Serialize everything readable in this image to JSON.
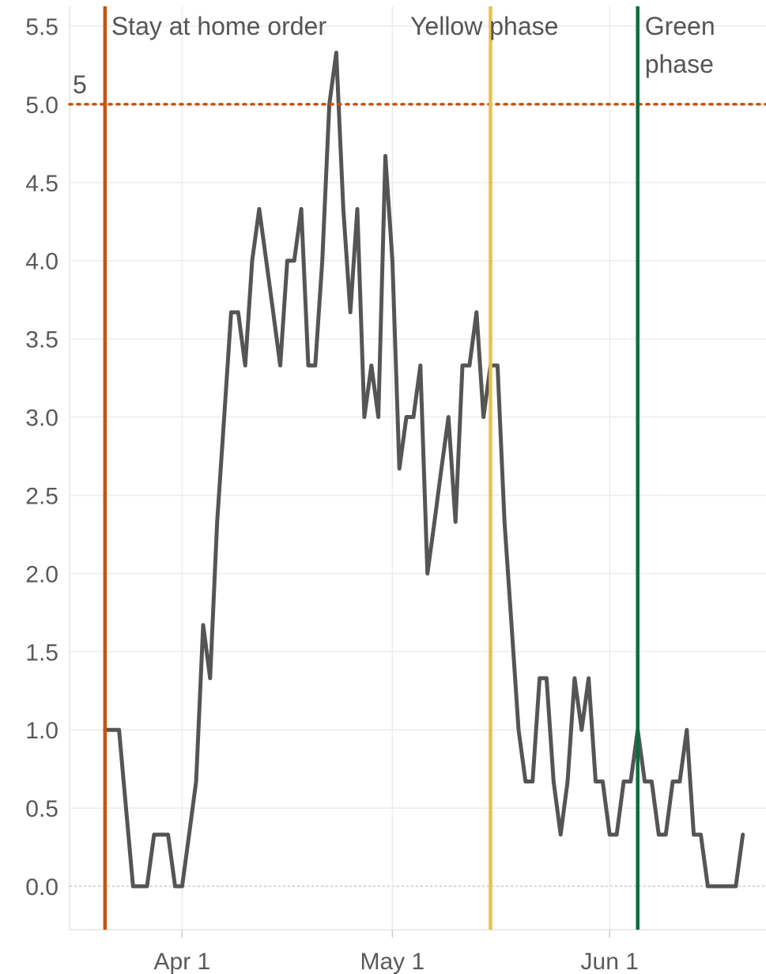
{
  "chart_data": {
    "type": "line",
    "title": "",
    "xlabel": "",
    "ylabel": "",
    "ylim": [
      -0.28,
      5.6
    ],
    "xlim": [
      "2020-03-16",
      "2020-06-21"
    ],
    "grid": true,
    "y_ticks": [
      "0.0",
      "0.5",
      "1.0",
      "1.5",
      "2.0",
      "2.5",
      "3.0",
      "3.5",
      "4.0",
      "4.5",
      "5.0",
      "5.5"
    ],
    "x_ticks": [
      {
        "date": "2020-04-01",
        "label": "Apr 1"
      },
      {
        "date": "2020-05-01",
        "label": "May 1"
      },
      {
        "date": "2020-06-01",
        "label": "Jun 1"
      }
    ],
    "series": [
      {
        "color": "#555555",
        "points": [
          [
            "2020-03-21",
            1.0
          ],
          [
            "2020-03-22",
            1.0
          ],
          [
            "2020-03-23",
            1.0
          ],
          [
            "2020-03-24",
            0.5
          ],
          [
            "2020-03-25",
            0.0
          ],
          [
            "2020-03-26",
            0.0
          ],
          [
            "2020-03-27",
            0.0
          ],
          [
            "2020-03-28",
            0.33
          ],
          [
            "2020-03-29",
            0.33
          ],
          [
            "2020-03-30",
            0.33
          ],
          [
            "2020-03-31",
            0.0
          ],
          [
            "2020-04-01",
            0.0
          ],
          [
            "2020-04-02",
            0.33
          ],
          [
            "2020-04-03",
            0.67
          ],
          [
            "2020-04-04",
            1.67
          ],
          [
            "2020-04-05",
            1.33
          ],
          [
            "2020-04-06",
            2.33
          ],
          [
            "2020-04-07",
            3.0
          ],
          [
            "2020-04-08",
            3.67
          ],
          [
            "2020-04-09",
            3.67
          ],
          [
            "2020-04-10",
            3.33
          ],
          [
            "2020-04-11",
            4.0
          ],
          [
            "2020-04-12",
            4.33
          ],
          [
            "2020-04-13",
            4.0
          ],
          [
            "2020-04-14",
            3.67
          ],
          [
            "2020-04-15",
            3.33
          ],
          [
            "2020-04-16",
            4.0
          ],
          [
            "2020-04-17",
            4.0
          ],
          [
            "2020-04-18",
            4.33
          ],
          [
            "2020-04-19",
            3.33
          ],
          [
            "2020-04-20",
            3.33
          ],
          [
            "2020-04-21",
            4.0
          ],
          [
            "2020-04-22",
            5.0
          ],
          [
            "2020-04-23",
            5.33
          ],
          [
            "2020-04-24",
            4.33
          ],
          [
            "2020-04-25",
            3.67
          ],
          [
            "2020-04-26",
            4.33
          ],
          [
            "2020-04-27",
            3.0
          ],
          [
            "2020-04-28",
            3.33
          ],
          [
            "2020-04-29",
            3.0
          ],
          [
            "2020-04-30",
            4.67
          ],
          [
            "2020-05-01",
            4.0
          ],
          [
            "2020-05-02",
            2.67
          ],
          [
            "2020-05-03",
            3.0
          ],
          [
            "2020-05-04",
            3.0
          ],
          [
            "2020-05-05",
            3.33
          ],
          [
            "2020-05-06",
            2.0
          ],
          [
            "2020-05-07",
            2.33
          ],
          [
            "2020-05-08",
            2.67
          ],
          [
            "2020-05-09",
            3.0
          ],
          [
            "2020-05-10",
            2.33
          ],
          [
            "2020-05-11",
            3.33
          ],
          [
            "2020-05-12",
            3.33
          ],
          [
            "2020-05-13",
            3.67
          ],
          [
            "2020-05-14",
            3.0
          ],
          [
            "2020-05-15",
            3.33
          ],
          [
            "2020-05-16",
            3.33
          ],
          [
            "2020-05-17",
            2.33
          ],
          [
            "2020-05-18",
            1.67
          ],
          [
            "2020-05-19",
            1.0
          ],
          [
            "2020-05-20",
            0.67
          ],
          [
            "2020-05-21",
            0.67
          ],
          [
            "2020-05-22",
            1.33
          ],
          [
            "2020-05-23",
            1.33
          ],
          [
            "2020-05-24",
            0.67
          ],
          [
            "2020-05-25",
            0.33
          ],
          [
            "2020-05-26",
            0.67
          ],
          [
            "2020-05-27",
            1.33
          ],
          [
            "2020-05-28",
            1.0
          ],
          [
            "2020-05-29",
            1.33
          ],
          [
            "2020-05-30",
            0.67
          ],
          [
            "2020-05-31",
            0.67
          ],
          [
            "2020-06-01",
            0.33
          ],
          [
            "2020-06-02",
            0.33
          ],
          [
            "2020-06-03",
            0.67
          ],
          [
            "2020-06-04",
            0.67
          ],
          [
            "2020-06-05",
            1.0
          ],
          [
            "2020-06-06",
            0.67
          ],
          [
            "2020-06-07",
            0.67
          ],
          [
            "2020-06-08",
            0.33
          ],
          [
            "2020-06-09",
            0.33
          ],
          [
            "2020-06-10",
            0.67
          ],
          [
            "2020-06-11",
            0.67
          ],
          [
            "2020-06-12",
            1.0
          ],
          [
            "2020-06-13",
            0.33
          ],
          [
            "2020-06-14",
            0.33
          ],
          [
            "2020-06-15",
            0.0
          ],
          [
            "2020-06-16",
            0.0
          ],
          [
            "2020-06-17",
            0.0
          ],
          [
            "2020-06-18",
            0.0
          ],
          [
            "2020-06-19",
            0.0
          ],
          [
            "2020-06-20",
            0.33
          ]
        ]
      }
    ],
    "reference_lines": [
      {
        "axis": "x",
        "date": "2020-03-21",
        "label": "Stay at home order",
        "color": "#c9520d"
      },
      {
        "axis": "x",
        "date": "2020-05-15",
        "label": "Yellow phase",
        "color": "#e8c04c"
      },
      {
        "axis": "x",
        "date": "2020-06-05",
        "label": "Green phase",
        "color": "#0d6b3c"
      },
      {
        "axis": "y",
        "value": 5.0,
        "label": "5",
        "color": "#c9520d",
        "style": "dotted"
      }
    ]
  }
}
